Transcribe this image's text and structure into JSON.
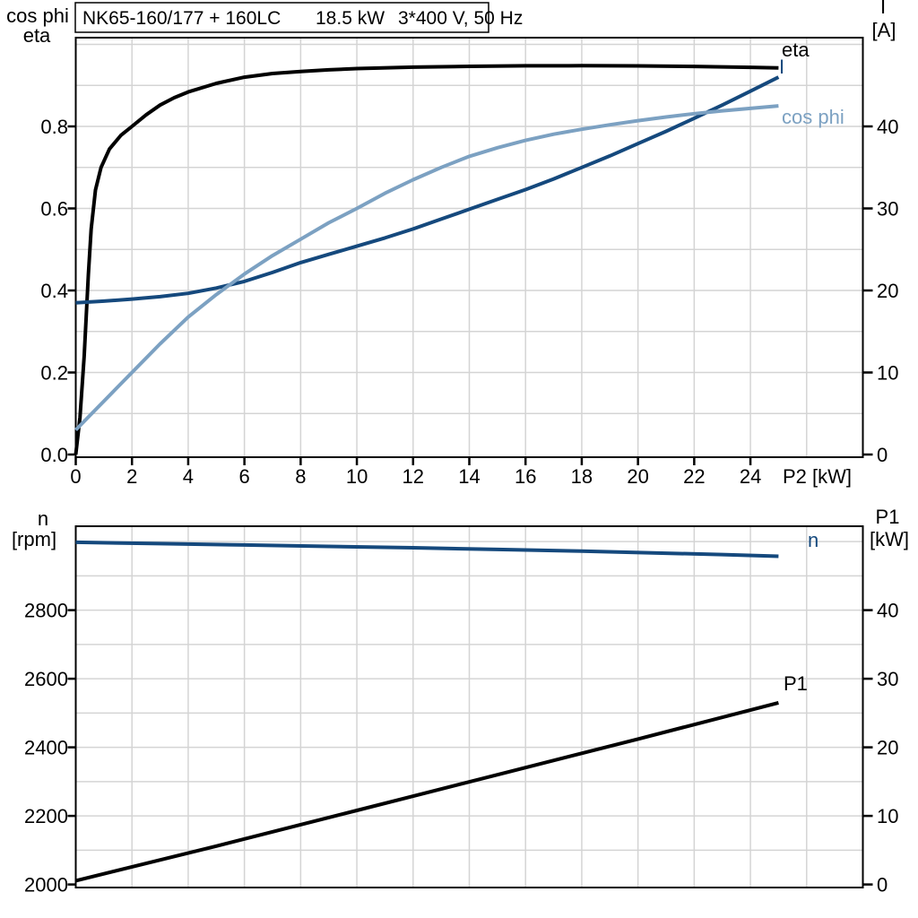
{
  "page": {
    "background": "#ffffff"
  },
  "colors": {
    "black": "#000000",
    "dark_blue": "#15497D",
    "light_blue": "#7CA1C2",
    "grid": "#D4D4D4",
    "frame": "#000000",
    "text": "#000000"
  },
  "header": {
    "title": "NK65-160/177 + 160LC   18.5 kW   3*400 V, 50 Hz",
    "title_parts": [
      "NK65-160/177 + 160LC",
      "18.5 kW",
      "3*400 V, 50 Hz"
    ]
  },
  "chart_data": [
    {
      "id": "top",
      "type": "line",
      "title": "NK65-160/177 + 160LC   18.5 kW   3*400 V, 50 Hz",
      "x_axis": {
        "label": "P2 [kW]",
        "ticks": [
          0,
          2,
          4,
          6,
          8,
          10,
          12,
          14,
          16,
          18,
          20,
          22,
          24
        ],
        "range": [
          0,
          28
        ],
        "grid_step": 2,
        "grid_max": 26
      },
      "left_axis": {
        "title_lines": [
          "cos phi",
          "eta"
        ],
        "tick_labels": [
          "0.0",
          "0.2",
          "0.4",
          "0.6",
          "0.8"
        ],
        "tick_values": [
          0,
          0.2,
          0.4,
          0.6,
          0.8
        ],
        "range": [
          0,
          1.0
        ],
        "grid_step": 0.1
      },
      "right_axis": {
        "title_lines": [
          "I",
          "[A]"
        ],
        "tick_labels": [
          "0",
          "10",
          "20",
          "30",
          "40"
        ],
        "tick_values": [
          0,
          10,
          20,
          30,
          40
        ],
        "range": [
          0,
          50
        ]
      },
      "legend_position": "end-of-curve",
      "grid": true,
      "series": [
        {
          "name": "eta",
          "axis": "left",
          "color_key": "black",
          "points": [
            [
              0,
              0
            ],
            [
              0.15,
              0.09
            ],
            [
              0.3,
              0.24
            ],
            [
              0.45,
              0.44
            ],
            [
              0.55,
              0.55
            ],
            [
              0.7,
              0.645
            ],
            [
              0.9,
              0.7
            ],
            [
              1.2,
              0.745
            ],
            [
              1.6,
              0.778
            ],
            [
              2,
              0.8
            ],
            [
              2.5,
              0.828
            ],
            [
              3,
              0.852
            ],
            [
              3.5,
              0.87
            ],
            [
              4,
              0.884
            ],
            [
              5,
              0.905
            ],
            [
              6,
              0.92
            ],
            [
              7,
              0.929
            ],
            [
              8,
              0.934
            ],
            [
              9,
              0.938
            ],
            [
              10,
              0.941
            ],
            [
              12,
              0.9445
            ],
            [
              14,
              0.9465
            ],
            [
              16,
              0.9478
            ],
            [
              18,
              0.948
            ],
            [
              20,
              0.9475
            ],
            [
              22,
              0.9462
            ],
            [
              24,
              0.944
            ],
            [
              25,
              0.9425
            ]
          ]
        },
        {
          "name": "I",
          "axis": "right",
          "color_key": "dark_blue",
          "points": [
            [
              0,
              18.5
            ],
            [
              1,
              18.7
            ],
            [
              2,
              18.95
            ],
            [
              3,
              19.25
            ],
            [
              4,
              19.65
            ],
            [
              5,
              20.3
            ],
            [
              6,
              21.1
            ],
            [
              7,
              22.2
            ],
            [
              8,
              23.4
            ],
            [
              9,
              24.4
            ],
            [
              10,
              25.4
            ],
            [
              11,
              26.4
            ],
            [
              12,
              27.5
            ],
            [
              13,
              28.7
            ],
            [
              14,
              29.9
            ],
            [
              15,
              31.1
            ],
            [
              16,
              32.3
            ],
            [
              17,
              33.6
            ],
            [
              18,
              35.0
            ],
            [
              19,
              36.4
            ],
            [
              20,
              37.9
            ],
            [
              21,
              39.4
            ],
            [
              22,
              41.0
            ],
            [
              23,
              42.6
            ],
            [
              24,
              44.3
            ],
            [
              25,
              46.0
            ]
          ]
        },
        {
          "name": "cos phi",
          "axis": "left",
          "color_key": "light_blue",
          "points": [
            [
              0,
              0.06
            ],
            [
              0.5,
              0.095
            ],
            [
              1,
              0.13
            ],
            [
              1.5,
              0.165
            ],
            [
              2,
              0.2
            ],
            [
              2.5,
              0.235
            ],
            [
              3,
              0.27
            ],
            [
              4,
              0.335
            ],
            [
              5,
              0.39
            ],
            [
              6,
              0.44
            ],
            [
              7,
              0.485
            ],
            [
              8,
              0.525
            ],
            [
              9,
              0.565
            ],
            [
              10,
              0.6
            ],
            [
              11,
              0.637
            ],
            [
              12,
              0.67
            ],
            [
              13,
              0.7
            ],
            [
              14,
              0.727
            ],
            [
              15,
              0.748
            ],
            [
              16,
              0.766
            ],
            [
              17,
              0.781
            ],
            [
              18,
              0.793
            ],
            [
              19,
              0.804
            ],
            [
              20,
              0.814
            ],
            [
              21,
              0.823
            ],
            [
              22,
              0.831
            ],
            [
              23,
              0.838
            ],
            [
              24,
              0.844
            ],
            [
              25,
              0.85
            ]
          ]
        }
      ]
    },
    {
      "id": "bottom",
      "type": "line",
      "title": "",
      "x_axis": {
        "label": "",
        "ticks": [],
        "range": [
          0,
          28
        ],
        "grid_step": 2,
        "grid_max": 26
      },
      "left_axis": {
        "title_lines": [
          "n",
          "[rpm]"
        ],
        "tick_labels": [
          "2000",
          "2200",
          "2400",
          "2600",
          "2800"
        ],
        "tick_values": [
          2000,
          2200,
          2400,
          2600,
          2800
        ],
        "range": [
          2000,
          3052
        ],
        "grid_step": 100
      },
      "right_axis": {
        "title_lines": [
          "P1",
          "[kW]"
        ],
        "tick_labels": [
          "0",
          "10",
          "20",
          "30",
          "40"
        ],
        "tick_values": [
          0,
          10,
          20,
          30,
          40
        ],
        "range": [
          0,
          52.6
        ]
      },
      "legend_position": "end-of-curve",
      "grid": true,
      "series": [
        {
          "name": "n",
          "axis": "left",
          "color_key": "dark_blue",
          "points": [
            [
              0,
              2998
            ],
            [
              3,
              2994
            ],
            [
              6,
              2990
            ],
            [
              9,
              2986
            ],
            [
              12,
              2982
            ],
            [
              15,
              2977
            ],
            [
              18,
              2972
            ],
            [
              21,
              2966
            ],
            [
              23,
              2962
            ],
            [
              25,
              2957
            ]
          ]
        },
        {
          "name": "P1",
          "axis": "right",
          "color_key": "black",
          "points": [
            [
              0,
              0.55
            ],
            [
              5,
              5.6
            ],
            [
              10,
              10.8
            ],
            [
              15,
              16.0
            ],
            [
              20,
              21.2
            ],
            [
              25,
              26.5
            ]
          ]
        }
      ]
    }
  ]
}
